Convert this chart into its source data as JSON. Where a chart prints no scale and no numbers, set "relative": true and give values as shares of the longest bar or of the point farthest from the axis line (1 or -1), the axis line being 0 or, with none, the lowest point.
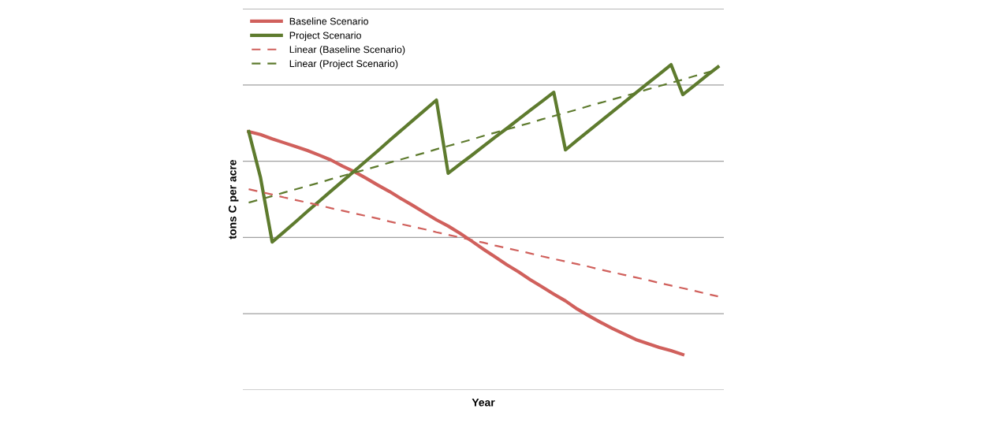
{
  "chart_data": {
    "type": "line",
    "xlabel": "Year",
    "ylabel": "tons C per acre",
    "relative": true,
    "grid": "y",
    "legend": "top left",
    "marker": "none",
    "categories": [
      null,
      null,
      null,
      null,
      null,
      null,
      null,
      null,
      null,
      null,
      null,
      null,
      null,
      null,
      null,
      null,
      null,
      null,
      null,
      null,
      null,
      null,
      null,
      null,
      null,
      null,
      null,
      null,
      null,
      null,
      null,
      null,
      null,
      null,
      null,
      null,
      null,
      null,
      null,
      null,
      null
    ],
    "series": [
      {
        "name": "Baseline Scenario",
        "color": "#d0605c",
        "line_style": "solid",
        "values": [
          0.794,
          0.785,
          0.772,
          0.76,
          0.748,
          0.736,
          0.722,
          0.707,
          0.688,
          0.671,
          0.651,
          0.63,
          0.61,
          0.588,
          0.567,
          0.545,
          0.523,
          0.504,
          0.482,
          0.458,
          0.433,
          0.409,
          0.385,
          0.363,
          0.339,
          0.317,
          0.295,
          0.274,
          0.249,
          0.228,
          0.208,
          0.189,
          0.172,
          0.155,
          0.143,
          0.131,
          0.121,
          0.109,
          null,
          null,
          null
        ]
      },
      {
        "name": "Project Scenario",
        "color": "#5e7b2e",
        "line_style": "solid",
        "values": [
          0.794,
          0.654,
          0.455,
          0.486,
          0.517,
          0.549,
          0.58,
          0.611,
          0.642,
          0.673,
          0.704,
          0.735,
          0.767,
          0.798,
          0.829,
          0.86,
          0.891,
          0.666,
          0.694,
          0.721,
          0.749,
          0.777,
          0.804,
          0.832,
          0.86,
          0.887,
          0.915,
          0.738,
          0.768,
          0.797,
          0.826,
          0.855,
          0.884,
          0.913,
          0.942,
          0.971,
          1.0,
          0.908,
          0.936,
          0.965,
          0.993
        ]
      },
      {
        "name": "Linear (Baseline Scenario)",
        "color": "#d0605c",
        "line_style": "dashed",
        "values": [
          0.617,
          0.609,
          0.601,
          0.592,
          0.584,
          0.576,
          0.568,
          0.559,
          0.551,
          0.543,
          0.535,
          0.527,
          0.518,
          0.51,
          0.502,
          0.494,
          0.485,
          0.477,
          0.469,
          0.461,
          0.453,
          0.444,
          0.436,
          0.428,
          0.42,
          0.411,
          0.403,
          0.395,
          0.387,
          0.379,
          0.37,
          0.362,
          0.354,
          0.346,
          0.338,
          0.329,
          0.321,
          0.313,
          0.305,
          0.296,
          0.288
        ]
      },
      {
        "name": "Linear (Project Scenario)",
        "color": "#5e7b2e",
        "line_style": "dashed",
        "values": [
          0.576,
          0.586,
          0.596,
          0.607,
          0.617,
          0.627,
          0.637,
          0.648,
          0.658,
          0.668,
          0.678,
          0.688,
          0.699,
          0.709,
          0.719,
          0.729,
          0.74,
          0.75,
          0.76,
          0.77,
          0.781,
          0.791,
          0.801,
          0.811,
          0.821,
          0.832,
          0.842,
          0.852,
          0.862,
          0.873,
          0.883,
          0.893,
          0.903,
          0.913,
          0.924,
          0.934,
          0.944,
          0.954,
          0.965,
          0.975,
          0.985
        ]
      }
    ]
  }
}
